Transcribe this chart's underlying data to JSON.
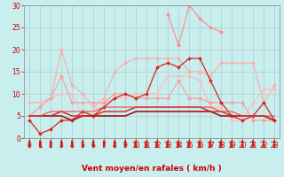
{
  "title": "",
  "xlabel": "Vent moyen/en rafales ( km/h )",
  "ylabel": "",
  "background_color": "#c8eeee",
  "grid_color": "#b0cccc",
  "xlim": [
    -0.5,
    23.5
  ],
  "ylim": [
    0,
    30
  ],
  "yticks": [
    0,
    5,
    10,
    15,
    20,
    25,
    30
  ],
  "xticks": [
    0,
    1,
    2,
    3,
    4,
    5,
    6,
    7,
    8,
    9,
    10,
    11,
    12,
    13,
    14,
    15,
    16,
    17,
    18,
    19,
    20,
    21,
    22,
    23
  ],
  "series": [
    {
      "y": [
        8,
        8,
        9,
        20,
        12,
        10,
        7,
        9,
        15,
        17,
        18,
        18,
        18,
        18,
        18,
        15,
        15,
        14,
        17,
        17,
        17,
        17,
        8,
        12
      ],
      "color": "#ffaaaa",
      "marker": "D",
      "markersize": 2,
      "linewidth": 0.8,
      "linestyle": "-"
    },
    {
      "y": [
        8,
        8,
        9,
        10,
        10,
        5,
        5,
        8,
        9,
        9,
        10,
        10,
        10,
        14,
        14,
        14,
        13,
        7,
        7,
        4,
        4,
        8,
        11,
        11
      ],
      "color": "#ffbbbb",
      "marker": "D",
      "markersize": 2,
      "linewidth": 0.8,
      "linestyle": "-"
    },
    {
      "y": [
        5,
        7,
        9,
        14,
        8,
        8,
        8,
        8,
        10,
        10,
        9,
        9,
        9,
        9,
        13,
        9,
        9,
        8,
        8,
        8,
        8,
        4,
        4,
        4
      ],
      "color": "#ff9999",
      "marker": "D",
      "markersize": 2,
      "linewidth": 0.8,
      "linestyle": "-"
    },
    {
      "y": [
        null,
        null,
        null,
        null,
        null,
        null,
        null,
        null,
        null,
        null,
        null,
        null,
        null,
        28,
        21,
        30,
        27,
        25,
        24,
        null,
        null,
        null,
        null,
        null
      ],
      "color": "#ff8888",
      "marker": "D",
      "markersize": 2,
      "linewidth": 0.8,
      "linestyle": "-"
    },
    {
      "y": [
        4,
        1,
        2,
        4,
        4,
        6,
        5,
        7,
        9,
        10,
        9,
        10,
        16,
        17,
        16,
        18,
        18,
        13,
        8,
        5,
        4,
        5,
        8,
        4
      ],
      "color": "#dd2222",
      "marker": "D",
      "markersize": 2,
      "linewidth": 0.9,
      "linestyle": "-"
    },
    {
      "y": [
        5,
        5,
        5,
        5,
        4,
        5,
        5,
        5,
        5,
        5,
        6,
        6,
        6,
        6,
        6,
        6,
        6,
        6,
        5,
        5,
        5,
        5,
        5,
        4
      ],
      "color": "#aa1111",
      "marker": null,
      "markersize": 0,
      "linewidth": 1.2,
      "linestyle": "-"
    },
    {
      "y": [
        5,
        5,
        5,
        6,
        5,
        5,
        5,
        6,
        6,
        6,
        7,
        7,
        7,
        7,
        7,
        7,
        7,
        6,
        6,
        5,
        5,
        5,
        5,
        4
      ],
      "color": "#cc2222",
      "marker": null,
      "markersize": 0,
      "linewidth": 1.0,
      "linestyle": "-"
    },
    {
      "y": [
        5,
        5,
        6,
        6,
        6,
        6,
        6,
        7,
        7,
        7,
        7,
        7,
        7,
        7,
        7,
        7,
        7,
        7,
        6,
        6,
        5,
        5,
        5,
        5
      ],
      "color": "#ee4444",
      "marker": null,
      "markersize": 0,
      "linewidth": 0.8,
      "linestyle": "-"
    }
  ]
}
